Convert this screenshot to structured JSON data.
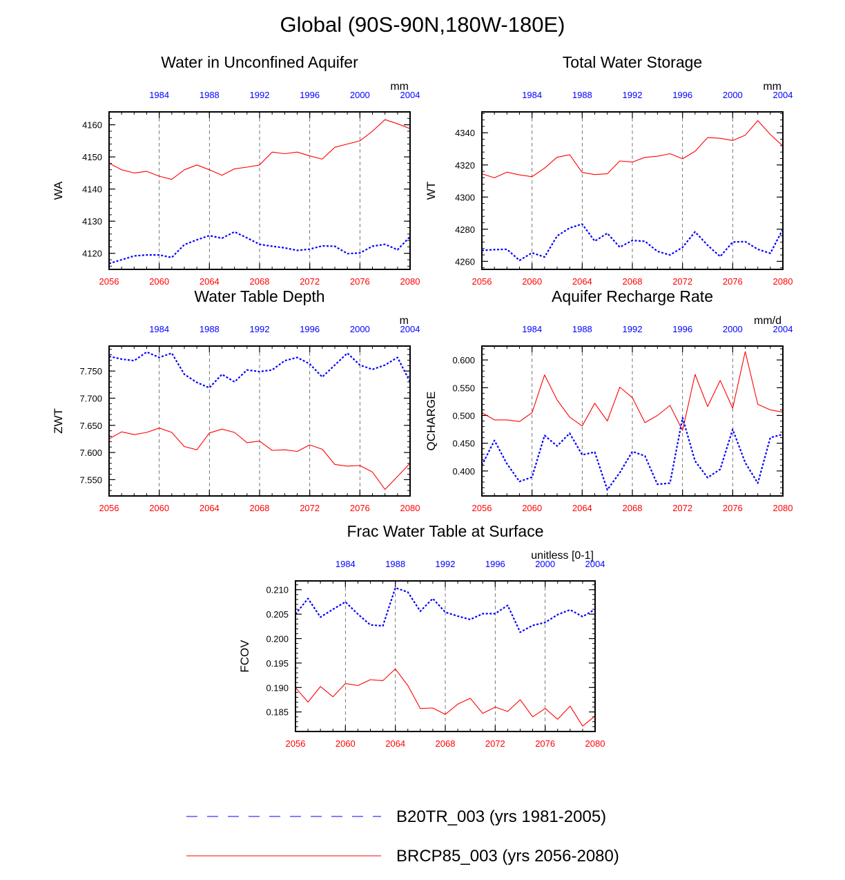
{
  "title": "Global (90S-90N,180W-180E)",
  "colors": {
    "future": "#ff0000",
    "historical": "#0000ff",
    "axis": "#000000",
    "grid": "#555555"
  },
  "legend": [
    {
      "label": "B20TR_003 (yrs 1981-2005)",
      "color": "#0000ff",
      "style": "dashed"
    },
    {
      "label": "BRCP85_003 (yrs 2056-2080)",
      "color": "#ff0000",
      "style": "solid"
    }
  ],
  "chart_data": [
    {
      "type": "line",
      "id": "wa",
      "title": "Water in Unconfined Aquifer",
      "ylabel": "WA",
      "units": "mm",
      "xlim": [
        2056,
        2080
      ],
      "ylim": [
        4115,
        4164
      ],
      "yticks": [
        4120,
        4130,
        4140,
        4150,
        4160
      ],
      "ytick_labels": [
        "4120",
        "4130",
        "4140",
        "4150",
        "4160"
      ],
      "x_bottom_ticks": [
        2056,
        2060,
        2064,
        2068,
        2072,
        2076,
        2080
      ],
      "x_top_ticks": [
        "1984",
        "1988",
        "1992",
        "1996",
        "2000",
        "2004"
      ],
      "x_top_offset": -75,
      "grid": "vertical-dashed",
      "series": [
        {
          "name": "BRCP85_003 (yrs 2056-2080)",
          "color": "#ff0000",
          "style": "solid",
          "x": [
            2056,
            2057,
            2058,
            2059,
            2060,
            2061,
            2062,
            2063,
            2064,
            2065,
            2066,
            2067,
            2068,
            2069,
            2070,
            2071,
            2072,
            2073,
            2074,
            2075,
            2076,
            2077,
            2078,
            2079,
            2080
          ],
          "values": [
            4148,
            4146,
            4145,
            4145.5,
            4144,
            4143,
            4146,
            4147.5,
            4146,
            4144.3,
            4146.3,
            4146.8,
            4147.5,
            4151.5,
            4151,
            4151.5,
            4150.3,
            4149.3,
            4153,
            4154,
            4155,
            4158,
            4161.6,
            4160.3,
            4158.8
          ]
        },
        {
          "name": "B20TR_003 (yrs 1981-2005)",
          "color": "#0000ff",
          "style": "dashed",
          "x": [
            2056,
            2057,
            2058,
            2059,
            2060,
            2061,
            2062,
            2063,
            2064,
            2065,
            2066,
            2067,
            2068,
            2069,
            2070,
            2071,
            2072,
            2073,
            2074,
            2075,
            2076,
            2077,
            2078,
            2079,
            2080
          ],
          "values": [
            4116.8,
            4118,
            4119.2,
            4119.5,
            4119.5,
            4118.7,
            4122.7,
            4124.2,
            4125.5,
            4124.7,
            4126.7,
            4124.8,
            4122.8,
            4122.2,
            4121.7,
            4120.9,
            4121.3,
            4122.3,
            4122.2,
            4119.9,
            4120.1,
            4122.2,
            4122.8,
            4121.1,
            4125.2
          ]
        }
      ]
    },
    {
      "type": "line",
      "id": "wt",
      "title": "Total Water Storage",
      "ylabel": "WT",
      "units": "mm",
      "xlim": [
        2056,
        2080
      ],
      "ylim": [
        4255,
        4353
      ],
      "yticks": [
        4260,
        4280,
        4300,
        4320,
        4340
      ],
      "ytick_labels": [
        "4260",
        "4280",
        "4300",
        "4320",
        "4340"
      ],
      "x_bottom_ticks": [
        2056,
        2060,
        2064,
        2068,
        2072,
        2076,
        2080
      ],
      "x_top_ticks": [
        "1984",
        "1988",
        "1992",
        "1996",
        "2000",
        "2004"
      ],
      "x_top_offset": -75,
      "grid": "vertical-dashed",
      "series": [
        {
          "name": "BRCP85_003 (yrs 2056-2080)",
          "color": "#ff0000",
          "style": "solid",
          "x": [
            2056,
            2057,
            2058,
            2059,
            2060,
            2061,
            2062,
            2063,
            2064,
            2065,
            2066,
            2067,
            2068,
            2069,
            2070,
            2071,
            2072,
            2073,
            2074,
            2075,
            2076,
            2077,
            2078,
            2079,
            2080
          ],
          "values": [
            4314.5,
            4312,
            4315.5,
            4313.8,
            4312.7,
            4318,
            4324.8,
            4326.3,
            4315.3,
            4314,
            4314.5,
            4322.5,
            4321.8,
            4324.7,
            4325.4,
            4327,
            4323.8,
            4328.5,
            4337,
            4336.6,
            4335.2,
            4338.5,
            4347.6,
            4339,
            4331.8
          ]
        },
        {
          "name": "B20TR_003 (yrs 1981-2005)",
          "color": "#0000ff",
          "style": "dashed",
          "x": [
            2056,
            2057,
            2058,
            2059,
            2060,
            2061,
            2062,
            2063,
            2064,
            2065,
            2066,
            2067,
            2068,
            2069,
            2070,
            2071,
            2072,
            2073,
            2074,
            2075,
            2076,
            2077,
            2078,
            2079,
            2080
          ],
          "values": [
            4266.8,
            4267.3,
            4267.5,
            4260.6,
            4265.3,
            4262.7,
            4275.8,
            4280.8,
            4283.2,
            4272.6,
            4277.5,
            4268.8,
            4273,
            4272.5,
            4266.2,
            4264,
            4268.7,
            4278.4,
            4270,
            4263,
            4272,
            4272.3,
            4267.5,
            4265,
            4280
          ]
        }
      ]
    },
    {
      "type": "line",
      "id": "zwt",
      "title": "Water Table Depth",
      "ylabel": "ZWT",
      "units": "m",
      "xlim": [
        2056,
        2080
      ],
      "ylim": [
        7.52,
        7.796
      ],
      "yticks": [
        7.55,
        7.6,
        7.65,
        7.7,
        7.75
      ],
      "ytick_labels": [
        "7.550",
        "7.600",
        "7.650",
        "7.700",
        "7.750"
      ],
      "x_bottom_ticks": [
        2056,
        2060,
        2064,
        2068,
        2072,
        2076,
        2080
      ],
      "x_top_ticks": [
        "1984",
        "1988",
        "1992",
        "1996",
        "2000",
        "2004"
      ],
      "x_top_offset": -75,
      "grid": "vertical-dashed",
      "series": [
        {
          "name": "BRCP85_003 (yrs 2056-2080)",
          "color": "#ff0000",
          "style": "solid",
          "x": [
            2056,
            2057,
            2058,
            2059,
            2060,
            2061,
            2062,
            2063,
            2064,
            2065,
            2066,
            2067,
            2068,
            2069,
            2070,
            2071,
            2072,
            2073,
            2074,
            2075,
            2076,
            2077,
            2078,
            2079,
            2080
          ],
          "values": [
            7.625,
            7.638,
            7.633,
            7.637,
            7.645,
            7.637,
            7.611,
            7.605,
            7.636,
            7.643,
            7.637,
            7.618,
            7.621,
            7.604,
            7.605,
            7.602,
            7.614,
            7.606,
            7.578,
            7.575,
            7.576,
            7.564,
            7.532,
            7.556,
            7.58
          ]
        },
        {
          "name": "B20TR_003 (yrs 1981-2005)",
          "color": "#0000ff",
          "style": "dashed",
          "x": [
            2056,
            2057,
            2058,
            2059,
            2060,
            2061,
            2062,
            2063,
            2064,
            2065,
            2066,
            2067,
            2068,
            2069,
            2070,
            2071,
            2072,
            2073,
            2074,
            2075,
            2076,
            2077,
            2078,
            2079,
            2080
          ],
          "values": [
            7.777,
            7.772,
            7.769,
            7.785,
            7.775,
            7.783,
            7.744,
            7.729,
            7.719,
            7.744,
            7.73,
            7.752,
            7.749,
            7.752,
            7.769,
            7.775,
            7.763,
            7.739,
            7.761,
            7.783,
            7.761,
            7.753,
            7.761,
            7.775,
            7.73
          ]
        }
      ]
    },
    {
      "type": "line",
      "id": "qcharge",
      "title": "Aquifer Recharge Rate",
      "ylabel": "QCHARGE",
      "units": "mm/d",
      "xlim": [
        2056,
        2080
      ],
      "ylim": [
        0.355,
        0.625
      ],
      "yticks": [
        0.4,
        0.45,
        0.5,
        0.55,
        0.6
      ],
      "ytick_labels": [
        "0.400",
        "0.450",
        "0.500",
        "0.550",
        "0.600"
      ],
      "x_bottom_ticks": [
        2056,
        2060,
        2064,
        2068,
        2072,
        2076,
        2080
      ],
      "x_top_ticks": [
        "1984",
        "1988",
        "1992",
        "1996",
        "2000",
        "2004"
      ],
      "x_top_offset": -75,
      "grid": "vertical-dashed",
      "series": [
        {
          "name": "BRCP85_003 (yrs 2056-2080)",
          "color": "#ff0000",
          "style": "solid",
          "x": [
            2056,
            2057,
            2058,
            2059,
            2060,
            2061,
            2062,
            2063,
            2064,
            2065,
            2066,
            2067,
            2068,
            2069,
            2070,
            2071,
            2072,
            2073,
            2074,
            2075,
            2076,
            2077,
            2078,
            2079,
            2080
          ],
          "values": [
            0.505,
            0.492,
            0.492,
            0.489,
            0.505,
            0.573,
            0.528,
            0.497,
            0.481,
            0.522,
            0.49,
            0.551,
            0.532,
            0.487,
            0.5,
            0.518,
            0.473,
            0.574,
            0.516,
            0.563,
            0.513,
            0.615,
            0.52,
            0.51,
            0.506
          ]
        },
        {
          "name": "B20TR_003 (yrs 1981-2005)",
          "color": "#0000ff",
          "style": "dashed",
          "x": [
            2056,
            2057,
            2058,
            2059,
            2060,
            2061,
            2062,
            2063,
            2064,
            2065,
            2066,
            2067,
            2068,
            2069,
            2070,
            2071,
            2072,
            2073,
            2074,
            2075,
            2076,
            2077,
            2078,
            2079,
            2080
          ],
          "values": [
            0.41,
            0.455,
            0.413,
            0.381,
            0.389,
            0.464,
            0.445,
            0.468,
            0.429,
            0.434,
            0.366,
            0.397,
            0.435,
            0.427,
            0.376,
            0.378,
            0.496,
            0.418,
            0.388,
            0.403,
            0.475,
            0.415,
            0.378,
            0.46,
            0.466
          ]
        }
      ]
    },
    {
      "type": "line",
      "id": "fcov",
      "title": "Frac Water Table at Surface",
      "ylabel": "FCOV",
      "units": "unitless [0-1]",
      "xlim": [
        2056,
        2080
      ],
      "ylim": [
        0.181,
        0.2118
      ],
      "yticks": [
        0.185,
        0.19,
        0.195,
        0.2,
        0.205,
        0.21
      ],
      "ytick_labels": [
        "0.185",
        "0.190",
        "0.195",
        "0.200",
        "0.205",
        "0.210"
      ],
      "x_bottom_ticks": [
        2056,
        2060,
        2064,
        2068,
        2072,
        2076,
        2080
      ],
      "x_top_ticks": [
        "1984",
        "1988",
        "1992",
        "1996",
        "2000",
        "2004"
      ],
      "x_top_offset": -75,
      "grid": "vertical-dashed",
      "series": [
        {
          "name": "BRCP85_003 (yrs 2056-2080)",
          "color": "#ff0000",
          "style": "solid",
          "x": [
            2056,
            2057,
            2058,
            2059,
            2060,
            2061,
            2062,
            2063,
            2064,
            2065,
            2066,
            2067,
            2068,
            2069,
            2070,
            2071,
            2072,
            2073,
            2074,
            2075,
            2076,
            2077,
            2078,
            2079,
            2080
          ],
          "values": [
            0.19,
            0.187,
            0.1902,
            0.1881,
            0.1908,
            0.1904,
            0.1916,
            0.1914,
            0.1938,
            0.1904,
            0.1857,
            0.1858,
            0.1845,
            0.1866,
            0.1878,
            0.1847,
            0.186,
            0.1851,
            0.1875,
            0.184,
            0.1857,
            0.1835,
            0.1862,
            0.1821,
            0.1842
          ]
        },
        {
          "name": "B20TR_003 (yrs 1981-2005)",
          "color": "#0000ff",
          "style": "dashed",
          "x": [
            2056,
            2057,
            2058,
            2059,
            2060,
            2061,
            2062,
            2063,
            2064,
            2065,
            2066,
            2067,
            2068,
            2069,
            2070,
            2071,
            2072,
            2073,
            2074,
            2075,
            2076,
            2077,
            2078,
            2079,
            2080
          ],
          "values": [
            0.205,
            0.2082,
            0.2044,
            0.206,
            0.2075,
            0.205,
            0.2028,
            0.2026,
            0.2104,
            0.2095,
            0.2056,
            0.2082,
            0.2054,
            0.2046,
            0.2039,
            0.2051,
            0.2051,
            0.2068,
            0.2013,
            0.2027,
            0.2033,
            0.2049,
            0.2059,
            0.2045,
            0.206
          ]
        }
      ]
    }
  ]
}
